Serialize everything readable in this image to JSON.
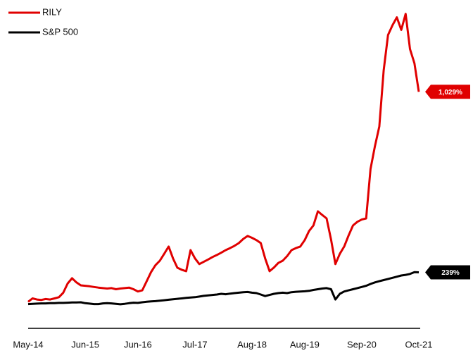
{
  "chart_data": {
    "type": "line",
    "categories": [
      "May-14",
      null,
      null,
      null,
      null,
      null,
      null,
      null,
      null,
      null,
      null,
      null,
      null,
      "Jun-15",
      null,
      null,
      null,
      null,
      null,
      null,
      null,
      null,
      null,
      null,
      null,
      "Jun-16",
      null,
      null,
      null,
      null,
      null,
      null,
      null,
      null,
      null,
      null,
      null,
      null,
      "Jul-17",
      null,
      null,
      null,
      null,
      null,
      null,
      null,
      null,
      null,
      null,
      null,
      null,
      "Aug-18",
      null,
      null,
      null,
      null,
      null,
      null,
      null,
      null,
      null,
      null,
      null,
      "Aug-19",
      null,
      null,
      null,
      null,
      null,
      null,
      null,
      null,
      null,
      null,
      null,
      null,
      "Sep-20",
      null,
      null,
      null,
      null,
      null,
      null,
      null,
      null,
      null,
      null,
      null,
      null,
      "Oct-21"
    ],
    "ylim": [
      0,
      1400
    ],
    "legend": "upper left",
    "series": [
      {
        "name": "RILY",
        "color": "#e00000",
        "values": [
          110,
          125,
          120,
          118,
          122,
          120,
          125,
          130,
          150,
          190,
          213,
          195,
          182,
          180,
          178,
          175,
          172,
          170,
          168,
          170,
          165,
          168,
          170,
          172,
          165,
          155,
          160,
          200,
          240,
          270,
          290,
          320,
          352,
          300,
          259,
          250,
          244,
          336,
          300,
          275,
          285,
          295,
          306,
          315,
          325,
          336,
          345,
          355,
          367,
          385,
          398,
          390,
          380,
          367,
          300,
          244,
          260,
          280,
          290,
          310,
          336,
          345,
          352,
          380,
          420,
          444,
          506,
          490,
          475,
          383,
          275,
          320,
          352,
          400,
          444,
          460,
          470,
          475,
          691,
          790,
          877,
          1123,
          1278,
          1320,
          1355,
          1300,
          1370,
          1216,
          1154,
          1029
        ],
        "value_labels": [
          null,
          null,
          null,
          null,
          null,
          null,
          null,
          null,
          null,
          null,
          null,
          null,
          null,
          null,
          null,
          null,
          null,
          null,
          null,
          null,
          null,
          null,
          null,
          null,
          null,
          null,
          null,
          null,
          null,
          null,
          null,
          null,
          null,
          null,
          null,
          null,
          null,
          null,
          null,
          null,
          null,
          null,
          null,
          null,
          null,
          null,
          null,
          null,
          null,
          null,
          null,
          null,
          null,
          null,
          null,
          null,
          null,
          null,
          null,
          null,
          null,
          null,
          null,
          null,
          null,
          null,
          null,
          null,
          null,
          null,
          null,
          null,
          null,
          null,
          null,
          null,
          null,
          null,
          null,
          null,
          null,
          null,
          null,
          null,
          null,
          null,
          null,
          null,
          null,
          "1,029%"
        ]
      },
      {
        "name": "S&P 500",
        "color": "#000000",
        "values": [
          100,
          101,
          102,
          103,
          103,
          104,
          104,
          105,
          105,
          106,
          107,
          107,
          108,
          104,
          102,
          100,
          100,
          103,
          104,
          103,
          101,
          99,
          101,
          104,
          106,
          105,
          108,
          110,
          112,
          113,
          115,
          117,
          119,
          121,
          123,
          125,
          127,
          129,
          130,
          133,
          136,
          138,
          140,
          142,
          145,
          143,
          146,
          148,
          150,
          152,
          153,
          150,
          148,
          142,
          135,
          140,
          145,
          148,
          150,
          148,
          152,
          154,
          155,
          156,
          158,
          162,
          165,
          168,
          170,
          165,
          120,
          145,
          155,
          160,
          165,
          170,
          175,
          180,
          188,
          195,
          200,
          205,
          210,
          215,
          220,
          225,
          228,
          232,
          240,
          239
        ],
        "value_labels": [
          null,
          null,
          null,
          null,
          null,
          null,
          null,
          null,
          null,
          null,
          null,
          null,
          null,
          null,
          null,
          null,
          null,
          null,
          null,
          null,
          null,
          null,
          null,
          null,
          null,
          null,
          null,
          null,
          null,
          null,
          null,
          null,
          null,
          null,
          null,
          null,
          null,
          null,
          null,
          null,
          null,
          null,
          null,
          null,
          null,
          null,
          null,
          null,
          null,
          null,
          null,
          null,
          null,
          null,
          null,
          null,
          null,
          null,
          null,
          null,
          null,
          null,
          null,
          null,
          null,
          null,
          null,
          null,
          null,
          null,
          null,
          null,
          null,
          null,
          null,
          null,
          null,
          null,
          null,
          null,
          null,
          null,
          null,
          null,
          null,
          null,
          null,
          null,
          null,
          "239%"
        ]
      }
    ]
  }
}
